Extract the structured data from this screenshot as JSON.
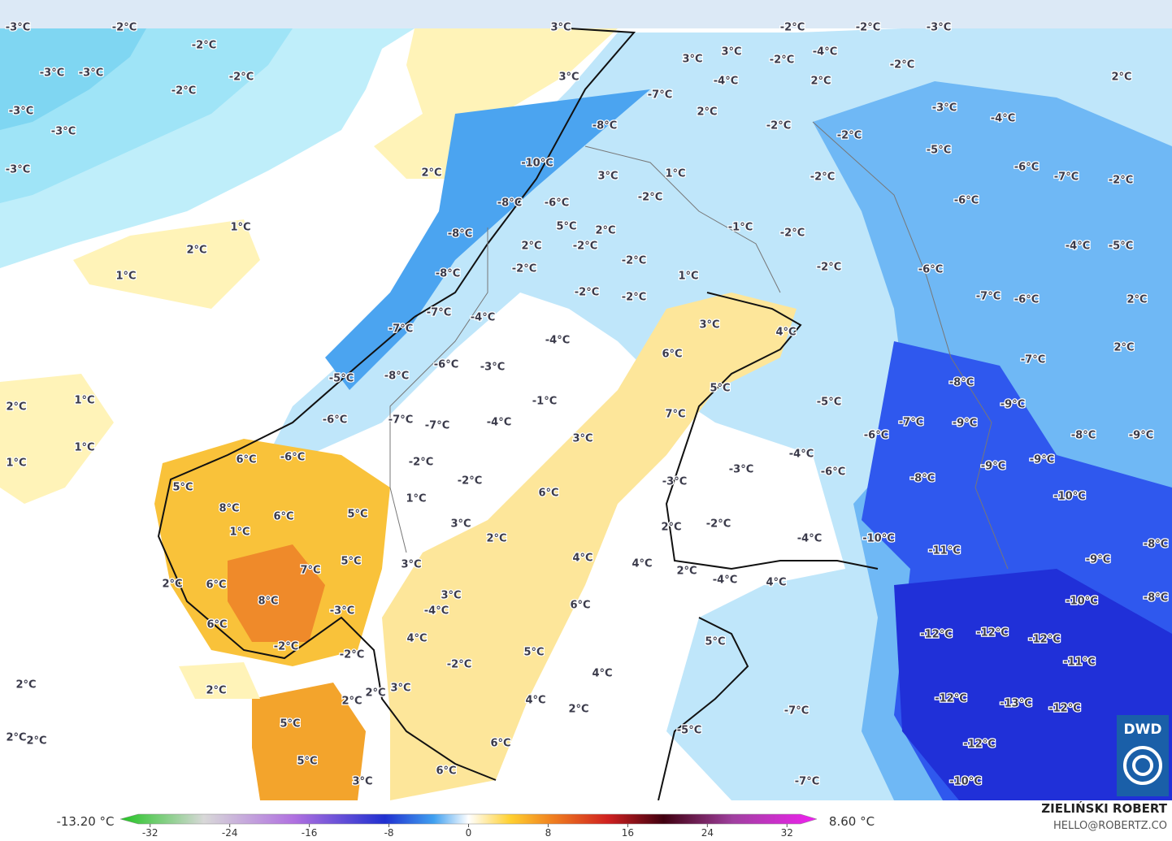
{
  "labels": [
    "-3°C",
    "-2°C",
    "3°C",
    "-2°C",
    "-3°C",
    "-3°C",
    "-2°C",
    "-2°C",
    "-3°C",
    "-3°C",
    "-3°C",
    "2°C",
    "1°C",
    "2°C",
    "1°C",
    "2°C",
    "1°C",
    "1°C",
    "1°C",
    "2°C",
    "2°C",
    "2°C",
    "2°C",
    "-2°C",
    "-2°C",
    "-3°C",
    "-4°C",
    "-2°C",
    "3°C",
    "3°C",
    "2°C",
    "2°C",
    "-2°C",
    "-4°C",
    "-7°C",
    "2°C",
    "-3°C",
    "-4°C",
    "-2°C",
    "-2°C",
    "-8°C",
    "3°C",
    "-5°C",
    "-10°C",
    "-6°C",
    "-7°C",
    "-2°C",
    "3°C",
    "1°C",
    "-2°C",
    "-6°C",
    "-2°C",
    "-6°C",
    "-8°C",
    "5°C",
    "2°C",
    "-1°C",
    "-2°C",
    "-8°C",
    "2°C",
    "-2°C",
    "-4°C",
    "-5°C",
    "-2°C",
    "-2°C",
    "-6°C",
    "-2°C",
    "-8°C",
    "1°C",
    "-2°C",
    "-2°C",
    "-7°C",
    "-6°C",
    "2°C",
    "-7°C",
    "-4°C",
    "3°C",
    "-7°C",
    "4°C",
    "-4°C",
    "2°C",
    "6°C",
    "-7°C",
    "-6°C",
    "-3°C",
    "-8°C",
    "-5°C",
    "-8°C",
    "5°C",
    "-1°C",
    "-9°C",
    "-5°C",
    "-6°C",
    "-7°C",
    "-7°C",
    "-4°C",
    "7°C",
    "-7°C",
    "-9°C",
    "-6°C",
    "-8°C",
    "-9°C",
    "3°C",
    "6°C",
    "-6°C",
    "-2°C",
    "-2°C",
    "-4°C",
    "-3°C",
    "-6°C",
    "-8°C",
    "-9°C",
    "-9°C",
    "5°C",
    "6°C",
    "1°C",
    "-3°C",
    "-10°C",
    "8°C",
    "6°C",
    "5°C",
    "3°C",
    "2°C",
    "2°C",
    "-2°C",
    "-4°C",
    "-10°C",
    "1°C",
    "-11°C",
    "-8°C",
    "7°C",
    "5°C",
    "3°C",
    "4°C",
    "4°C",
    "2°C",
    "-4°C",
    "4°C",
    "-9°C",
    "2°C",
    "6°C",
    "8°C",
    "3°C",
    "6°C",
    "-10°C",
    "-8°C",
    "-3°C",
    "-4°C",
    "6°C",
    "4°C",
    "-12°C",
    "-12°C",
    "-12°C",
    "-2°C",
    "-2°C",
    "5°C",
    "5°C",
    "-2°C",
    "-11°C",
    "2°C",
    "3°C",
    "4°C",
    "-12°C",
    "-13°C",
    "-12°C",
    "2°C",
    "4°C",
    "2°C",
    "-7°C",
    "5°C",
    "-5°C",
    "6°C",
    "-12°C",
    "5°C",
    "6°C",
    "3°C",
    "-7°C",
    "-10°C"
  ],
  "colorbar": {
    "min_label": "-13.20 °C",
    "max_label": "8.60 °C",
    "lim": [
      -35,
      35
    ],
    "ticks": [
      -32,
      -24,
      -16,
      -8,
      0,
      8,
      16,
      24,
      32
    ]
  },
  "credits": {
    "author": "ZIELIŃSKI ROBERT",
    "contact": "HELLO@ROBERTZ.CO",
    "logo": "DWD"
  }
}
